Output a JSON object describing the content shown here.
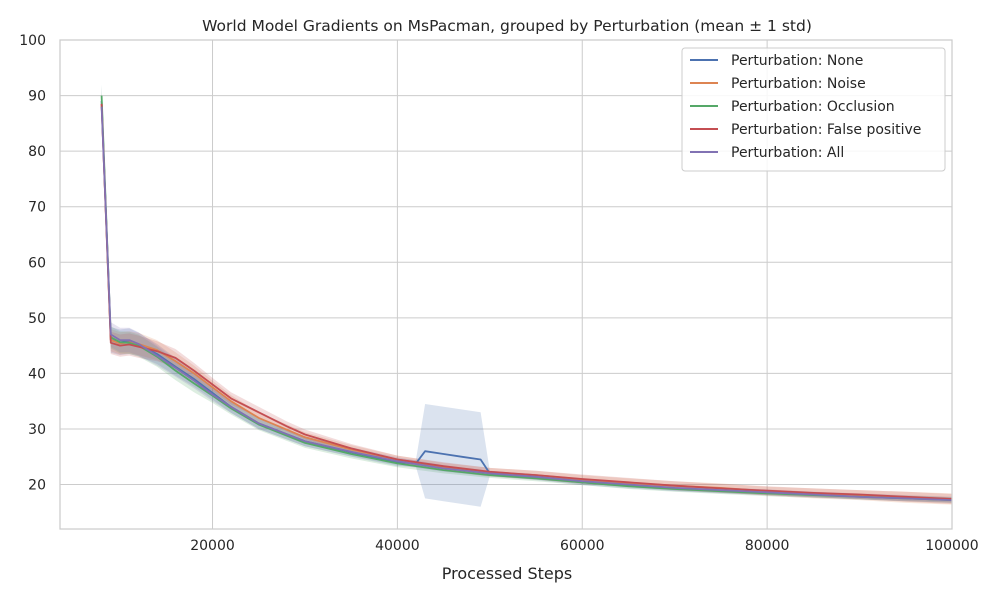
{
  "chart_data": {
    "type": "line",
    "title": "World Model Gradients on MsPacman, grouped by Perturbation (mean ± 1 std)",
    "xlabel": "Processed Steps",
    "ylabel": "",
    "xlim": [
      3500,
      100000
    ],
    "ylim": [
      12,
      100
    ],
    "x_ticks": [
      20000,
      40000,
      60000,
      80000,
      100000
    ],
    "y_ticks": [
      20,
      30,
      40,
      50,
      60,
      70,
      80,
      90,
      100
    ],
    "grid": true,
    "legend_position": "top-right",
    "colors": {
      "none": "#4c72b0",
      "noise": "#dd8452",
      "occlusion": "#55a868",
      "false_positive": "#c44e52",
      "all": "#8172b3",
      "grid": "#cccccc",
      "background": "#ffffff"
    },
    "series": [
      {
        "name": "Perturbation: None",
        "key": "none",
        "x": [
          8000,
          9000,
          10000,
          11000,
          12000,
          14000,
          16000,
          18000,
          20000,
          22000,
          25000,
          30000,
          35000,
          40000,
          42000,
          43000,
          45000,
          47000,
          49000,
          50000,
          55000,
          60000,
          65000,
          70000,
          75000,
          80000,
          85000,
          90000,
          95000,
          100000
        ],
        "y": [
          89,
          46,
          45.6,
          45.8,
          45.2,
          43.5,
          41.2,
          39,
          36.5,
          34,
          31,
          27.8,
          25.8,
          24,
          23.8,
          26,
          25.5,
          25,
          24.5,
          22,
          21.3,
          20.4,
          19.8,
          19.3,
          18.9,
          18.6,
          18.2,
          17.9,
          17.6,
          17.3
        ],
        "std": [
          3,
          2.3,
          2.3,
          2.3,
          2.1,
          1.8,
          1.6,
          1.4,
          1.2,
          1.1,
          1,
          0.9,
          0.8,
          0.7,
          0.6,
          8.5,
          8.5,
          8.5,
          8.5,
          0.5,
          0.5,
          0.5,
          0.5,
          0.5,
          0.5,
          0.5,
          0.5,
          0.5,
          0.5,
          0.5
        ]
      },
      {
        "name": "Perturbation: Noise",
        "key": "noise",
        "x": [
          8000,
          9000,
          10000,
          11000,
          12000,
          14000,
          16000,
          18000,
          20000,
          22000,
          25000,
          30000,
          35000,
          40000,
          45000,
          50000,
          55000,
          60000,
          65000,
          70000,
          75000,
          80000,
          85000,
          90000,
          95000,
          100000
        ],
        "y": [
          88.5,
          46,
          45.4,
          45.6,
          45.3,
          44.2,
          42.2,
          40,
          37.5,
          35,
          32,
          28.5,
          26.3,
          24.5,
          23.2,
          22.2,
          21.7,
          20.9,
          20.3,
          19.8,
          19.4,
          18.8,
          18.4,
          18.1,
          17.7,
          17.4
        ],
        "std": [
          2,
          2,
          2,
          2,
          2,
          1.8,
          1.6,
          1.4,
          1.2,
          1.1,
          1,
          0.9,
          0.8,
          0.7,
          0.7,
          0.8,
          0.8,
          0.8,
          0.8,
          0.8,
          0.8,
          0.8,
          0.9,
          0.9,
          1,
          1
        ]
      },
      {
        "name": "Perturbation: Occlusion",
        "key": "occlusion",
        "x": [
          8000,
          9000,
          10000,
          11000,
          12000,
          14000,
          16000,
          18000,
          20000,
          22000,
          25000,
          30000,
          35000,
          40000,
          45000,
          50000,
          55000,
          60000,
          65000,
          70000,
          75000,
          80000,
          85000,
          90000,
          95000,
          100000
        ],
        "y": [
          90,
          46.5,
          45.6,
          45.5,
          45,
          43,
          40.5,
          38.2,
          36,
          33.7,
          30.8,
          27.5,
          25.5,
          23.8,
          22.6,
          21.7,
          21.1,
          20.4,
          19.7,
          19.2,
          18.8,
          18.4,
          18.1,
          17.8,
          17.5,
          17.2
        ],
        "std": [
          2,
          2,
          2,
          2,
          2,
          1.8,
          1.7,
          1.6,
          1.3,
          1.1,
          1,
          0.9,
          0.8,
          0.7,
          0.6,
          0.5,
          0.5,
          0.5,
          0.5,
          0.5,
          0.5,
          0.5,
          0.5,
          0.5,
          0.5,
          0.5
        ]
      },
      {
        "name": "Perturbation: False positive",
        "key": "false_positive",
        "x": [
          8000,
          9000,
          10000,
          11000,
          12000,
          14000,
          16000,
          18000,
          20000,
          22000,
          25000,
          28000,
          30000,
          35000,
          40000,
          45000,
          50000,
          55000,
          60000,
          65000,
          70000,
          75000,
          80000,
          85000,
          90000,
          95000,
          100000
        ],
        "y": [
          88.5,
          45.5,
          45,
          45.2,
          44.8,
          44,
          42.8,
          40.5,
          38,
          35.5,
          33,
          30.5,
          29,
          26.5,
          24.5,
          23.3,
          22.3,
          21.7,
          21,
          20.4,
          19.8,
          19.3,
          18.9,
          18.5,
          18.2,
          17.8,
          17.4
        ],
        "std": [
          2,
          2,
          2,
          2,
          2,
          1.8,
          1.6,
          1.4,
          1.2,
          1.1,
          1,
          0.9,
          0.9,
          0.8,
          0.7,
          0.7,
          0.7,
          0.8,
          0.8,
          0.8,
          0.8,
          0.8,
          0.8,
          0.8,
          0.8,
          0.9,
          0.9
        ]
      },
      {
        "name": "Perturbation: All",
        "key": "all",
        "x": [
          8000,
          9000,
          10000,
          11000,
          12000,
          14000,
          16000,
          18000,
          20000,
          22000,
          25000,
          30000,
          35000,
          40000,
          45000,
          50000,
          55000,
          60000,
          65000,
          70000,
          75000,
          80000,
          85000,
          90000,
          95000,
          100000
        ],
        "y": [
          88,
          47,
          46,
          46,
          45.3,
          43.2,
          41,
          38.7,
          36.2,
          34,
          31,
          27.8,
          25.9,
          24.2,
          22.9,
          22,
          21.4,
          20.6,
          20,
          19.4,
          19,
          18.6,
          18.2,
          17.8,
          17.5,
          17.2
        ],
        "std": [
          2,
          2.2,
          2.2,
          2.2,
          2.1,
          1.8,
          1.6,
          1.4,
          1.2,
          1.1,
          1,
          0.9,
          0.8,
          0.7,
          0.6,
          0.5,
          0.5,
          0.5,
          0.5,
          0.5,
          0.5,
          0.5,
          0.5,
          0.5,
          0.5,
          0.5
        ]
      }
    ]
  }
}
